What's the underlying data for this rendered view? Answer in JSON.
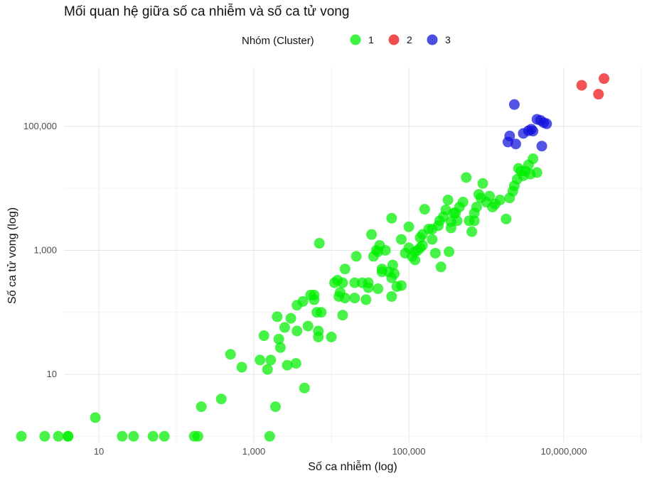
{
  "chart_data": {
    "type": "scatter",
    "title": "Mối quan hệ giữa số ca nhiễm và số ca tử vong",
    "xlabel": "Số ca nhiễm (log)",
    "ylabel": "Số ca tử vong (log)",
    "x_scale": "log10",
    "y_scale": "log10",
    "xlim": [
      0.55,
      8.0
    ],
    "ylim": [
      -0.1,
      5.95
    ],
    "x_ticks": [
      {
        "value": 10,
        "label": "10"
      },
      {
        "value": 1000,
        "label": "1,000"
      },
      {
        "value": 100000,
        "label": "100,000"
      },
      {
        "value": 10000000,
        "label": "10,000,000"
      }
    ],
    "y_ticks": [
      {
        "value": 10,
        "label": "10"
      },
      {
        "value": 1000,
        "label": "1,000"
      },
      {
        "value": 100000,
        "label": "100,000"
      }
    ],
    "grid": true,
    "legend": {
      "title": "Nhóm (Cluster)",
      "position": "top",
      "entries": [
        {
          "label": "1",
          "color": "#00ee00"
        },
        {
          "label": "2",
          "color": "#ee1111"
        },
        {
          "label": "3",
          "color": "#1111dd"
        }
      ]
    },
    "series": [
      {
        "name": "1",
        "color": "#00ee00",
        "points": [
          [
            1,
            1
          ],
          [
            2,
            1
          ],
          [
            3,
            1
          ],
          [
            4,
            1
          ],
          [
            4,
            1
          ],
          [
            9,
            2
          ],
          [
            20,
            1
          ],
          [
            28,
            1
          ],
          [
            50,
            1
          ],
          [
            70,
            1
          ],
          [
            170,
            1
          ],
          [
            190,
            1
          ],
          [
            1600,
            1
          ],
          [
            210,
            3
          ],
          [
            380,
            4
          ],
          [
            500,
            21
          ],
          [
            700,
            13
          ],
          [
            1350,
            42
          ],
          [
            1650,
            17
          ],
          [
            1900,
            3
          ],
          [
            1200,
            17
          ],
          [
            1500,
            12
          ],
          [
            2000,
            85
          ],
          [
            2100,
            37
          ],
          [
            2200,
            27
          ],
          [
            2500,
            57
          ],
          [
            2700,
            14
          ],
          [
            3500,
            15
          ],
          [
            4500,
            6
          ],
          [
            3600,
            50
          ],
          [
            5000,
            60
          ],
          [
            3000,
            80
          ],
          [
            3600,
            130
          ],
          [
            4300,
            150
          ],
          [
            5400,
            190
          ],
          [
            6000,
            160
          ],
          [
            6000,
            190
          ],
          [
            6500,
            100
          ],
          [
            6800,
            40
          ],
          [
            6800,
            50
          ],
          [
            7000,
            1300
          ],
          [
            7400,
            100
          ],
          [
            10000,
            40
          ],
          [
            11000,
            300
          ],
          [
            12000,
            330
          ],
          [
            12500,
            180
          ],
          [
            13000,
            210
          ],
          [
            14000,
            90
          ],
          [
            14000,
            300
          ],
          [
            15000,
            500
          ],
          [
            15000,
            170
          ],
          [
            20000,
            300
          ],
          [
            20000,
            170
          ],
          [
            21000,
            800
          ],
          [
            25000,
            300
          ],
          [
            30000,
            300
          ],
          [
            28000,
            160
          ],
          [
            30000,
            250
          ],
          [
            33000,
            1800
          ],
          [
            35000,
            800
          ],
          [
            38000,
            1000
          ],
          [
            40000,
            950
          ],
          [
            42000,
            1200
          ],
          [
            45000,
            450
          ],
          [
            45000,
            500
          ],
          [
            50000,
            1000
          ],
          [
            55000,
            450
          ],
          [
            60000,
            360
          ],
          [
            60000,
            180
          ],
          [
            40000,
            240
          ],
          [
            62000,
            580
          ],
          [
            65000,
            420
          ],
          [
            60000,
            3300
          ],
          [
            70000,
            260
          ],
          [
            80000,
            270
          ],
          [
            80000,
            1500
          ],
          [
            90000,
            900
          ],
          [
            100000,
            1100
          ],
          [
            100000,
            2400
          ],
          [
            110000,
            800
          ],
          [
            120000,
            950
          ],
          [
            130000,
            1000
          ],
          [
            140000,
            1600
          ],
          [
            150000,
            1200
          ],
          [
            150000,
            1800
          ],
          [
            160000,
            4600
          ],
          [
            120000,
            700
          ],
          [
            140000,
            1100
          ],
          [
            180000,
            2200
          ],
          [
            200000,
            1500
          ],
          [
            200000,
            2200
          ],
          [
            220000,
            900
          ],
          [
            240000,
            2500
          ],
          [
            250000,
            3000
          ],
          [
            260000,
            540
          ],
          [
            280000,
            3500
          ],
          [
            300000,
            4500
          ],
          [
            320000,
            6500
          ],
          [
            330000,
            950
          ],
          [
            350000,
            2300
          ],
          [
            350000,
            2900
          ],
          [
            380000,
            4000
          ],
          [
            400000,
            4000
          ],
          [
            420000,
            3000
          ],
          [
            450000,
            5000
          ],
          [
            500000,
            6000
          ],
          [
            550000,
            15000
          ],
          [
            600000,
            3000
          ],
          [
            650000,
            2000
          ],
          [
            700000,
            3000
          ],
          [
            700000,
            4000
          ],
          [
            750000,
            5000
          ],
          [
            800000,
            8000
          ],
          [
            850000,
            7000
          ],
          [
            900000,
            12000
          ],
          [
            1000000,
            6000
          ],
          [
            1100000,
            7500
          ],
          [
            1200000,
            5000
          ],
          [
            1300000,
            5600
          ],
          [
            1500000,
            6500
          ],
          [
            1800000,
            3200
          ],
          [
            2000000,
            7000
          ],
          [
            2200000,
            9000
          ],
          [
            2300000,
            11000
          ],
          [
            2500000,
            14000
          ],
          [
            2600000,
            21000
          ],
          [
            2800000,
            19000
          ],
          [
            3000000,
            16000
          ],
          [
            3200000,
            19000
          ],
          [
            3500000,
            24000
          ],
          [
            3700000,
            17000
          ],
          [
            4000000,
            30000
          ],
          [
            4500000,
            18000
          ]
        ]
      },
      {
        "name": "2",
        "color": "#ee1111",
        "points": [
          [
            17000000,
            460000
          ],
          [
            28000000,
            330000
          ],
          [
            33000000,
            590000
          ]
        ]
      },
      {
        "name": "3",
        "color": "#1111dd",
        "points": [
          [
            2300000,
            225000
          ],
          [
            1900000,
            56000
          ],
          [
            2000000,
            70000
          ],
          [
            2400000,
            52000
          ],
          [
            3000000,
            77000
          ],
          [
            3500000,
            85000
          ],
          [
            3800000,
            90000
          ],
          [
            4000000,
            84000
          ],
          [
            4500000,
            130000
          ],
          [
            5000000,
            125000
          ],
          [
            5500000,
            115000
          ],
          [
            5200000,
            48000
          ],
          [
            6000000,
            110000
          ]
        ]
      }
    ]
  }
}
